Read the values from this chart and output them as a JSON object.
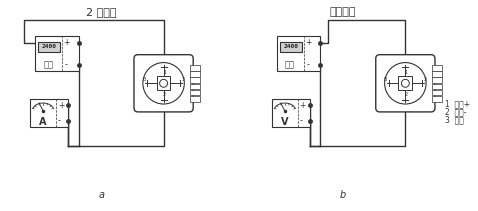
{
  "title_left": "2 线电流",
  "title_right": "电压输出",
  "label_a": "a",
  "label_b": "b",
  "power_label": "电源",
  "power_display": "2400",
  "meter_a": "A",
  "meter_v": "V",
  "legend_1": "1  电源+",
  "legend_2": "2  电源-",
  "legend_3": "3  输出",
  "line_color": "#333333"
}
